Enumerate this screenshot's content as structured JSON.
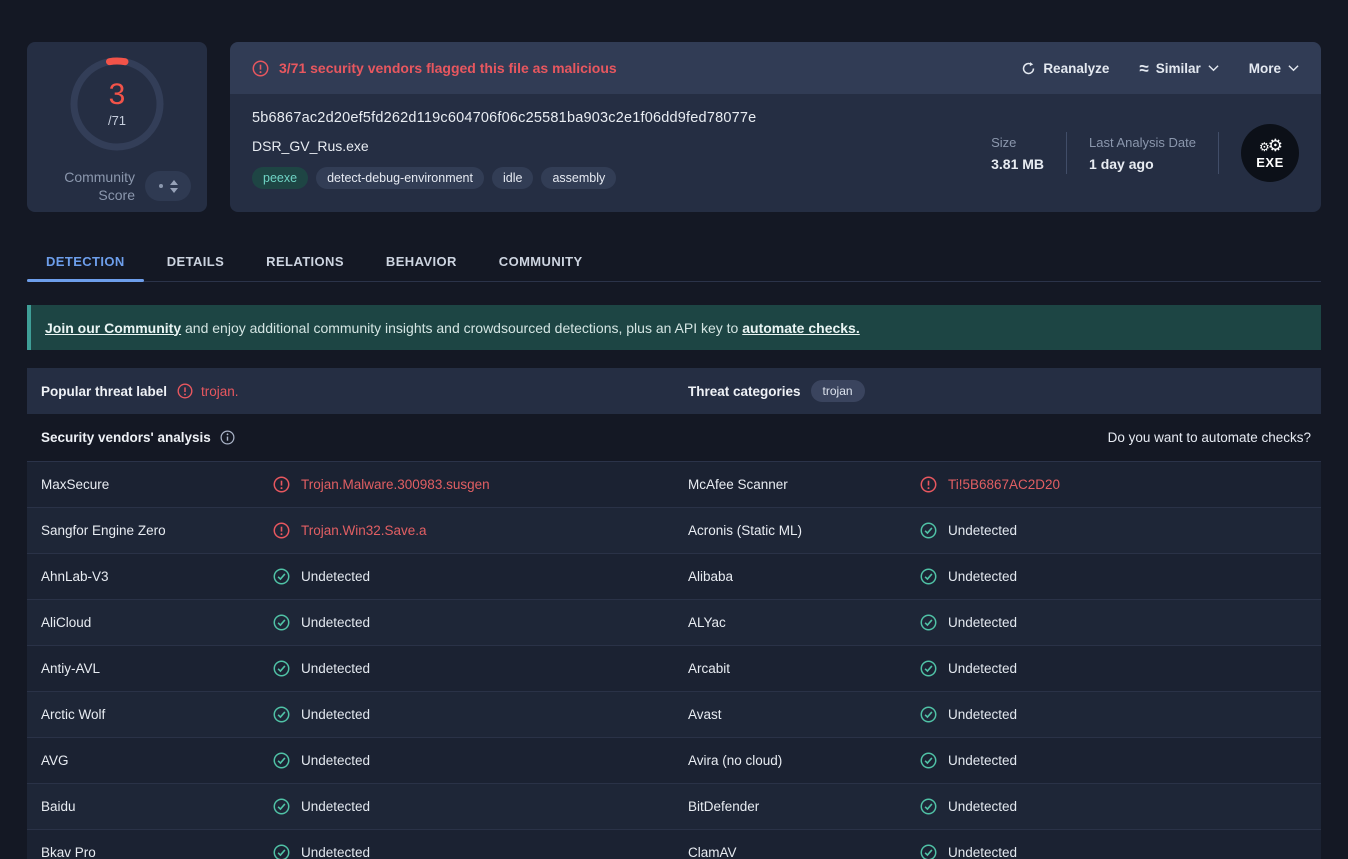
{
  "colors": {
    "accent_red": "#e8575f",
    "score_red": "#f25349",
    "teal_check": "#50c2a6",
    "tab_active_blue": "#6d9eeb",
    "banner_teal_bg": "#1d4544"
  },
  "score_card": {
    "score": "3",
    "total": "/71",
    "label_line1": "Community",
    "label_line2": "Score",
    "vote_icon": "vote-up-down-icon"
  },
  "flag_bar": {
    "warning_icon": "alert-circle-icon",
    "flag_text": "3/71 security vendors flagged this file as malicious",
    "reanalyze_label": "Reanalyze",
    "reanalyze_icon": "refresh-icon",
    "similar_label": "Similar",
    "similar_icon": "similar-waves-icon",
    "more_label": "More",
    "chevron_icon": "chevron-down-icon"
  },
  "file": {
    "hash": "5b6867ac2d20ef5fd262d119c604706f06c25581ba903c2e1f06dd9fed78077e",
    "name": "DSR_GV_Rus.exe",
    "tags": [
      {
        "label": "peexe",
        "style": "teal"
      },
      {
        "label": "detect-debug-environment",
        "style": "default"
      },
      {
        "label": "idle",
        "style": "default"
      },
      {
        "label": "assembly",
        "style": "default"
      }
    ],
    "size_label": "Size",
    "size_value": "3.81 MB",
    "date_label": "Last Analysis Date",
    "date_value": "1 day ago",
    "file_type_badge": "EXE",
    "file_type_icon": "exe-gears-icon"
  },
  "tabs": [
    {
      "label": "DETECTION",
      "active": true
    },
    {
      "label": "DETAILS",
      "active": false
    },
    {
      "label": "RELATIONS",
      "active": false
    },
    {
      "label": "BEHAVIOR",
      "active": false
    },
    {
      "label": "COMMUNITY",
      "active": false
    }
  ],
  "banner": {
    "link_community": "Join our Community",
    "text_middle": " and enjoy additional community insights and crowdsourced detections, plus an API key to ",
    "link_automate": "automate checks."
  },
  "threat": {
    "label_title": "Popular threat label",
    "warning_icon": "alert-circle-icon",
    "label_value": "trojan.",
    "categories_title": "Threat categories",
    "categories": [
      "trojan"
    ]
  },
  "analysis": {
    "title": "Security vendors' analysis",
    "info_icon": "info-circle-icon",
    "automate_prompt": "Do you want to automate checks?",
    "status_icons": {
      "malicious": "alert-circle-icon",
      "undetected": "check-circle-icon"
    },
    "rows": [
      {
        "left": {
          "vendor": "MaxSecure",
          "result": "Trojan.Malware.300983.susgen",
          "status": "malicious"
        },
        "right": {
          "vendor": "McAfee Scanner",
          "result": "Ti!5B6867AC2D20",
          "status": "malicious"
        }
      },
      {
        "left": {
          "vendor": "Sangfor Engine Zero",
          "result": "Trojan.Win32.Save.a",
          "status": "malicious"
        },
        "right": {
          "vendor": "Acronis (Static ML)",
          "result": "Undetected",
          "status": "undetected"
        }
      },
      {
        "left": {
          "vendor": "AhnLab-V3",
          "result": "Undetected",
          "status": "undetected"
        },
        "right": {
          "vendor": "Alibaba",
          "result": "Undetected",
          "status": "undetected"
        }
      },
      {
        "left": {
          "vendor": "AliCloud",
          "result": "Undetected",
          "status": "undetected"
        },
        "right": {
          "vendor": "ALYac",
          "result": "Undetected",
          "status": "undetected"
        }
      },
      {
        "left": {
          "vendor": "Antiy-AVL",
          "result": "Undetected",
          "status": "undetected"
        },
        "right": {
          "vendor": "Arcabit",
          "result": "Undetected",
          "status": "undetected"
        }
      },
      {
        "left": {
          "vendor": "Arctic Wolf",
          "result": "Undetected",
          "status": "undetected"
        },
        "right": {
          "vendor": "Avast",
          "result": "Undetected",
          "status": "undetected"
        }
      },
      {
        "left": {
          "vendor": "AVG",
          "result": "Undetected",
          "status": "undetected"
        },
        "right": {
          "vendor": "Avira (no cloud)",
          "result": "Undetected",
          "status": "undetected"
        }
      },
      {
        "left": {
          "vendor": "Baidu",
          "result": "Undetected",
          "status": "undetected"
        },
        "right": {
          "vendor": "BitDefender",
          "result": "Undetected",
          "status": "undetected"
        }
      },
      {
        "left": {
          "vendor": "Bkav Pro",
          "result": "Undetected",
          "status": "undetected"
        },
        "right": {
          "vendor": "ClamAV",
          "result": "Undetected",
          "status": "undetected"
        }
      }
    ]
  }
}
